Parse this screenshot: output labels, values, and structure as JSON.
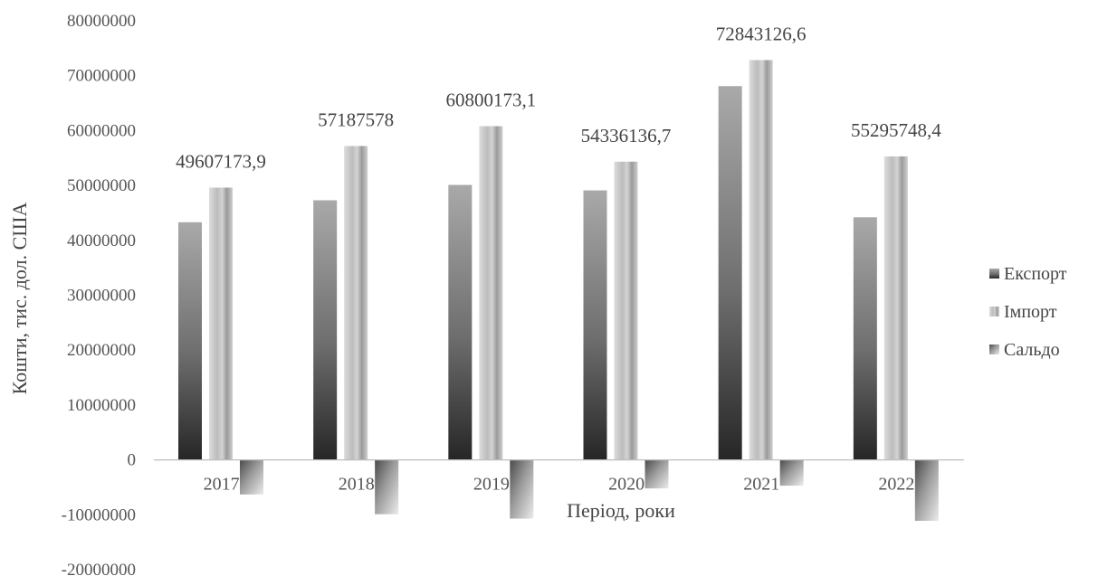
{
  "chart_data": {
    "type": "bar",
    "title": "",
    "xlabel": "Період, роки",
    "ylabel": "Кошти, тис. дол. США",
    "ylim": [
      -20000000,
      80000000
    ],
    "ytick_values": [
      -20000000,
      -10000000,
      0,
      10000000,
      20000000,
      30000000,
      40000000,
      50000000,
      60000000,
      70000000,
      80000000
    ],
    "ytick_labels": [
      "-20000000",
      "-10000000",
      "0",
      "10000000",
      "20000000",
      "30000000",
      "40000000",
      "50000000",
      "60000000",
      "70000000",
      "80000000"
    ],
    "categories": [
      "2017",
      "2018",
      "2019",
      "2020",
      "2021",
      "2022"
    ],
    "series": [
      {
        "name": "Експорт",
        "values": [
          43300000,
          47300000,
          50100000,
          49100000,
          68100000,
          44200000
        ]
      },
      {
        "name": "Імпорт",
        "values": [
          49607173.9,
          57187578,
          60800173.1,
          54336136.7,
          72843126.6,
          55295748.4
        ]
      },
      {
        "name": "Сальдо",
        "values": [
          -6300000,
          -9900000,
          -10700000,
          -5200000,
          -4700000,
          -11100000
        ]
      }
    ],
    "data_labels": [
      "49607173,9",
      "57187578",
      "60800173,1",
      "54336136,7",
      "72843126,6",
      "55295748,4"
    ],
    "legend_position": "right",
    "grid": false
  }
}
